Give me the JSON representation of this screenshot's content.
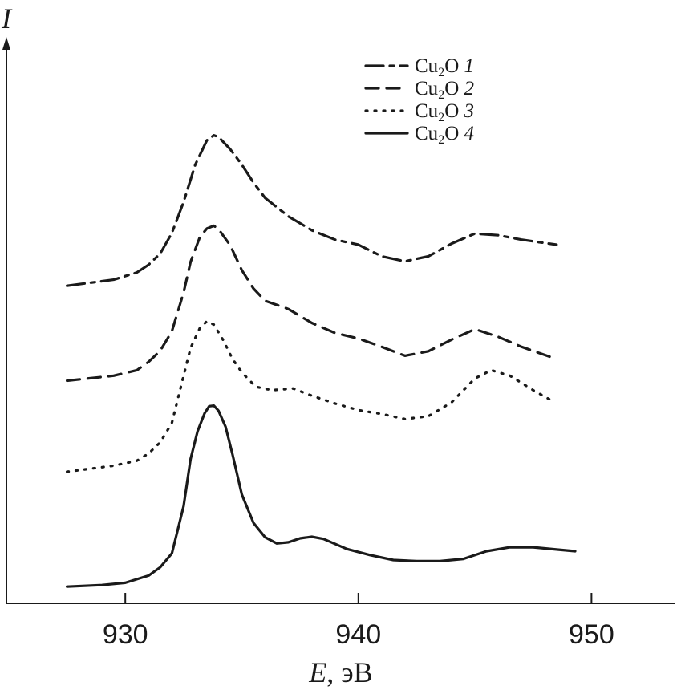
{
  "chart_data": {
    "type": "line",
    "xlabel_var": "E",
    "xlabel_unit": ", эВ",
    "ylabel": "I",
    "xlim": [
      924.9,
      953.6
    ],
    "xticks": [
      930,
      940,
      950
    ],
    "ylim": [
      0,
      1
    ],
    "grid": false,
    "legend_position": "top-right",
    "series": [
      {
        "name": "Cu2O 1",
        "name_base": "Cu",
        "name_sub": "2",
        "name_tail": "O",
        "name_index": "1",
        "dash": "22 8 5 8",
        "x": [
          927.5,
          929.5,
          930.5,
          931.0,
          931.5,
          932.0,
          932.5,
          933.0,
          933.5,
          933.8,
          934.0,
          934.5,
          935.0,
          935.5,
          936.0,
          937.0,
          938.0,
          939.0,
          940.0,
          941.0,
          942.0,
          943.0,
          944.0,
          945.0,
          946.0,
          947.0,
          948.5
        ],
        "y": [
          0.572,
          0.583,
          0.596,
          0.61,
          0.63,
          0.667,
          0.723,
          0.79,
          0.834,
          0.843,
          0.84,
          0.818,
          0.79,
          0.758,
          0.73,
          0.697,
          0.672,
          0.655,
          0.646,
          0.625,
          0.616,
          0.625,
          0.648,
          0.666,
          0.663,
          0.655,
          0.646
        ]
      },
      {
        "name": "Cu2O 2",
        "name_base": "Cu",
        "name_sub": "2",
        "name_tail": "O",
        "name_index": "2",
        "dash": "16 10",
        "x": [
          927.5,
          929.5,
          930.5,
          931.0,
          931.5,
          932.0,
          932.5,
          932.8,
          933.2,
          933.5,
          933.8,
          934.0,
          934.5,
          935.0,
          935.5,
          936.0,
          937.0,
          938.0,
          939.0,
          940.0,
          941.0,
          942.0,
          943.0,
          944.0,
          945.0,
          946.0,
          947.0,
          948.5
        ],
        "y": [
          0.401,
          0.41,
          0.42,
          0.435,
          0.455,
          0.49,
          0.56,
          0.615,
          0.66,
          0.675,
          0.68,
          0.674,
          0.645,
          0.6,
          0.567,
          0.545,
          0.53,
          0.505,
          0.487,
          0.477,
          0.462,
          0.446,
          0.454,
          0.475,
          0.494,
          0.48,
          0.462,
          0.44
        ]
      },
      {
        "name": "Cu2O 3",
        "name_base": "Cu",
        "name_sub": "2",
        "name_tail": "O",
        "name_index": "3",
        "dash": "2 9",
        "x": [
          927.5,
          929.5,
          930.5,
          931.0,
          931.5,
          932.0,
          932.5,
          932.8,
          933.2,
          933.5,
          933.8,
          934.2,
          934.6,
          935.0,
          935.6,
          936.3,
          937.2,
          938.0,
          939.0,
          940.0,
          941.0,
          942.0,
          943.0,
          944.0,
          945.0,
          945.7,
          946.5,
          947.5,
          948.3
        ],
        "y": [
          0.237,
          0.248,
          0.257,
          0.27,
          0.29,
          0.325,
          0.41,
          0.46,
          0.496,
          0.508,
          0.502,
          0.474,
          0.44,
          0.416,
          0.39,
          0.384,
          0.387,
          0.374,
          0.36,
          0.348,
          0.341,
          0.332,
          0.337,
          0.362,
          0.405,
          0.42,
          0.41,
          0.384,
          0.365
        ]
      },
      {
        "name": "Cu2O 4",
        "name_base": "Cu",
        "name_sub": "2",
        "name_tail": "O",
        "name_index": "4",
        "dash": "",
        "x": [
          927.5,
          929.0,
          930.0,
          931.0,
          931.5,
          932.0,
          932.5,
          932.8,
          933.1,
          933.4,
          933.6,
          933.8,
          934.0,
          934.3,
          934.6,
          935.0,
          935.5,
          936.0,
          936.5,
          937.0,
          937.5,
          938.0,
          938.5,
          939.5,
          940.5,
          941.5,
          942.5,
          943.5,
          944.5,
          945.5,
          946.5,
          947.5,
          948.5,
          949.3
        ],
        "y": [
          0.03,
          0.033,
          0.037,
          0.05,
          0.065,
          0.09,
          0.175,
          0.26,
          0.31,
          0.342,
          0.355,
          0.356,
          0.347,
          0.318,
          0.268,
          0.196,
          0.145,
          0.119,
          0.108,
          0.11,
          0.117,
          0.12,
          0.116,
          0.098,
          0.087,
          0.078,
          0.076,
          0.076,
          0.08,
          0.094,
          0.101,
          0.101,
          0.097,
          0.094
        ]
      }
    ]
  }
}
